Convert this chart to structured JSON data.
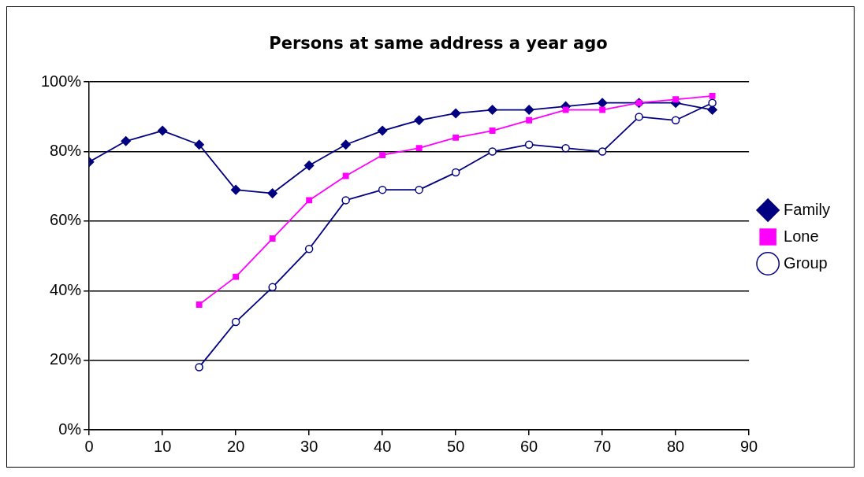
{
  "chart_data": {
    "type": "line",
    "title": "Persons at same address a year ago",
    "xlim": [
      0,
      90
    ],
    "xticks": [
      0,
      10,
      20,
      30,
      40,
      50,
      60,
      70,
      80,
      90
    ],
    "ylim": [
      0,
      100
    ],
    "yticks": [
      {
        "value": 0,
        "label": "0%"
      },
      {
        "value": 20,
        "label": "20%"
      },
      {
        "value": 40,
        "label": "40%"
      },
      {
        "value": 60,
        "label": "60%"
      },
      {
        "value": 80,
        "label": "80%"
      },
      {
        "value": 100,
        "label": "100%"
      }
    ],
    "grid": "y",
    "legend": "right",
    "line_style": "solid",
    "series": [
      {
        "name": "Family",
        "color": "#000080",
        "marker": "diamond",
        "x": [
          0,
          5,
          10,
          15,
          20,
          25,
          30,
          35,
          40,
          45,
          50,
          55,
          60,
          65,
          70,
          75,
          80,
          85
        ],
        "values": [
          77,
          83,
          86,
          82,
          69,
          68,
          76,
          82,
          86,
          89,
          91,
          92,
          92,
          93,
          94,
          94,
          94,
          92
        ]
      },
      {
        "name": "Lone",
        "color": "#ff00ff",
        "marker": "square",
        "x": [
          15,
          20,
          25,
          30,
          35,
          40,
          45,
          50,
          55,
          60,
          65,
          70,
          75,
          80,
          85
        ],
        "values": [
          36,
          44,
          55,
          66,
          73,
          79,
          81,
          84,
          86,
          89,
          92,
          92,
          94,
          95,
          96
        ]
      },
      {
        "name": "Group",
        "color": "#000080",
        "marker": "circle",
        "x": [
          15,
          20,
          25,
          30,
          35,
          40,
          45,
          50,
          55,
          60,
          65,
          70,
          75,
          80,
          85
        ],
        "values": [
          18,
          31,
          41,
          52,
          66,
          69,
          69,
          74,
          80,
          82,
          81,
          80,
          90,
          89,
          94
        ]
      }
    ]
  }
}
